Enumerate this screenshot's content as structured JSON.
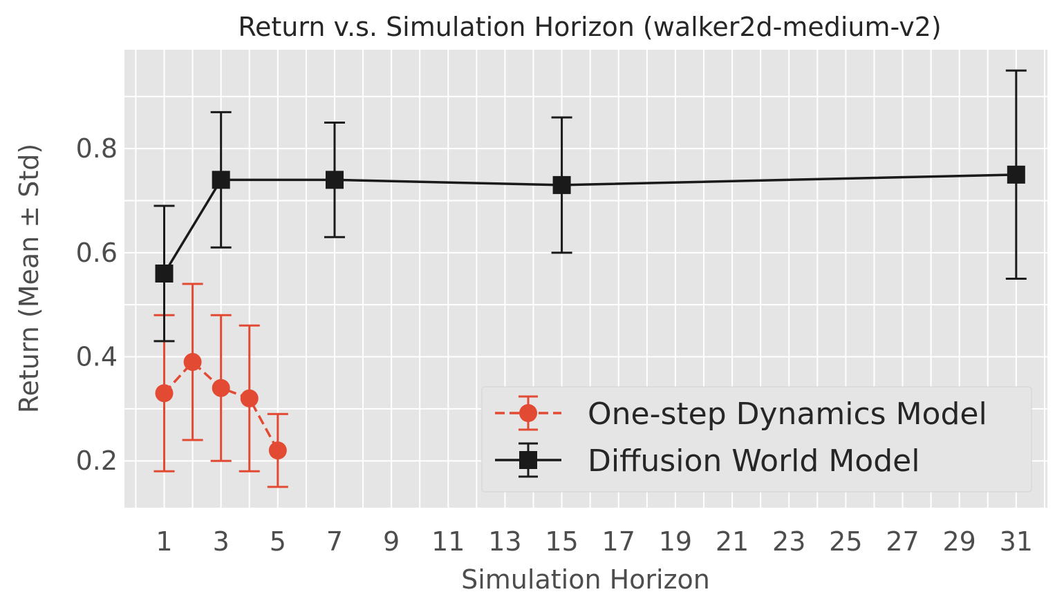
{
  "chart_data": {
    "type": "line",
    "title": "Return v.s. Simulation Horizon (walker2d-medium-v2)",
    "xlabel": "Simulation Horizon",
    "ylabel": "Return (Mean ± Std)",
    "xlim": [
      -0.4,
      32.1
    ],
    "ylim": [
      0.11,
      0.99
    ],
    "xticks": [
      1,
      3,
      5,
      7,
      9,
      11,
      13,
      15,
      17,
      19,
      21,
      23,
      25,
      27,
      29,
      31
    ],
    "yticks": [
      0.2,
      0.4,
      0.6,
      0.8
    ],
    "grid": true,
    "legend_position": "lower-right",
    "series": [
      {
        "name": "One-step Dynamics Model",
        "color": "#E24A33",
        "marker": "circle",
        "line_style": "dashed",
        "x": [
          1,
          2,
          3,
          4,
          5
        ],
        "y": [
          0.33,
          0.39,
          0.34,
          0.32,
          0.22
        ],
        "yerr": [
          0.15,
          0.15,
          0.14,
          0.14,
          0.07
        ]
      },
      {
        "name": "Diffusion World Model",
        "color": "#1a1a1a",
        "marker": "square",
        "line_style": "solid",
        "x": [
          1,
          3,
          7,
          15,
          31
        ],
        "y": [
          0.56,
          0.74,
          0.74,
          0.73,
          0.75
        ],
        "yerr": [
          0.13,
          0.13,
          0.11,
          0.13,
          0.2
        ]
      }
    ]
  }
}
